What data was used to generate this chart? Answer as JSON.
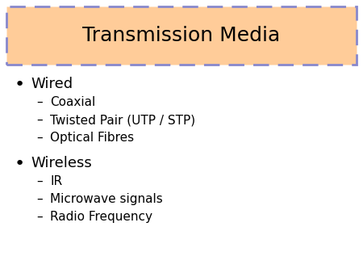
{
  "title": "Transmission Media",
  "title_bg_color": "#FFCC99",
  "title_border_color": "#8888CC",
  "background_color": "#FFFFFF",
  "text_color": "#000000",
  "bullet_items": [
    {
      "label": "Wired",
      "sub_items": [
        "Coaxial",
        "Twisted Pair (UTP / STP)",
        "Optical Fibres"
      ]
    },
    {
      "label": "Wireless",
      "sub_items": [
        "IR",
        "Microwave signals",
        "Radio Frequency"
      ]
    }
  ],
  "title_fontsize": 18,
  "bullet_fontsize": 13,
  "sub_fontsize": 11,
  "fig_width": 4.5,
  "fig_height": 3.38,
  "dpi": 100
}
